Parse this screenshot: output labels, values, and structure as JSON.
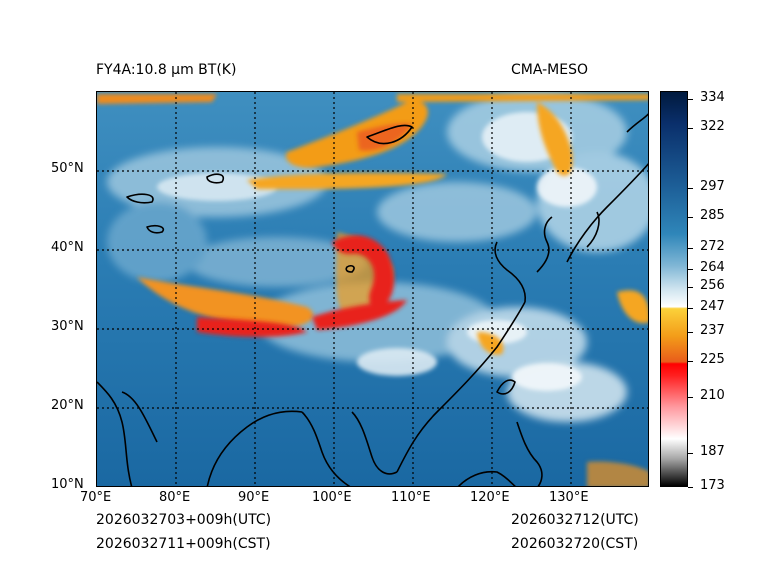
{
  "title_left": "FY4A:10.8 μm BT(K)",
  "title_right": "CMA-MESO",
  "lat_labels": [
    "50°N",
    "40°N",
    "30°N",
    "20°N",
    "10°N"
  ],
  "lon_labels": [
    "70°E",
    "80°E",
    "90°E",
    "100°E",
    "110°E",
    "120°E",
    "130°E"
  ],
  "colorbar": {
    "min": 173,
    "max": 336,
    "ticks": [
      334,
      322,
      297,
      285,
      272,
      264,
      256,
      247,
      237,
      225,
      210,
      187,
      173
    ],
    "unit": "K"
  },
  "footer": {
    "init_utc": "2026032703+009h(UTC)",
    "init_cst": "2026032711+009h(CST)",
    "valid_utc": "2026032712(UTC)",
    "valid_cst": "2026032720(CST)"
  },
  "colors": {
    "cold_top": "#002050",
    "clear_blue": "#1d6fa7",
    "high_cloud": "#e8f2f7",
    "convective_orange": "#f39c19",
    "convective_red": "#e8231f",
    "coastline": "#000000"
  }
}
